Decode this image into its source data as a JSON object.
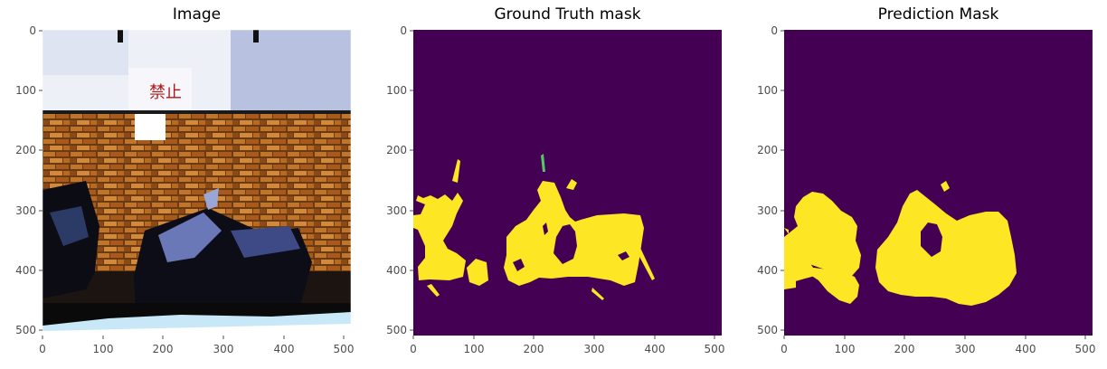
{
  "figure": {
    "panels": [
      {
        "title": "Image",
        "x_ticks": [
          "0",
          "100",
          "200",
          "300",
          "400",
          "500"
        ],
        "y_ticks": [
          "0",
          "100",
          "200",
          "300",
          "400",
          "500"
        ],
        "sign_text": "禁止"
      },
      {
        "title": "Ground Truth mask",
        "x_ticks": [
          "0",
          "100",
          "200",
          "300",
          "400",
          "500"
        ],
        "y_ticks": [
          "0",
          "100",
          "200",
          "300",
          "400",
          "500"
        ]
      },
      {
        "title": "Prediction Mask",
        "x_ticks": [
          "0",
          "100",
          "200",
          "300",
          "400",
          "500"
        ],
        "y_ticks": [
          "0",
          "100",
          "200",
          "300",
          "400",
          "500"
        ]
      }
    ],
    "colors": {
      "mask_background": "#440154",
      "mask_foreground": "#fde725",
      "tick_label": "#4d4d4d",
      "title": "#000000"
    }
  }
}
